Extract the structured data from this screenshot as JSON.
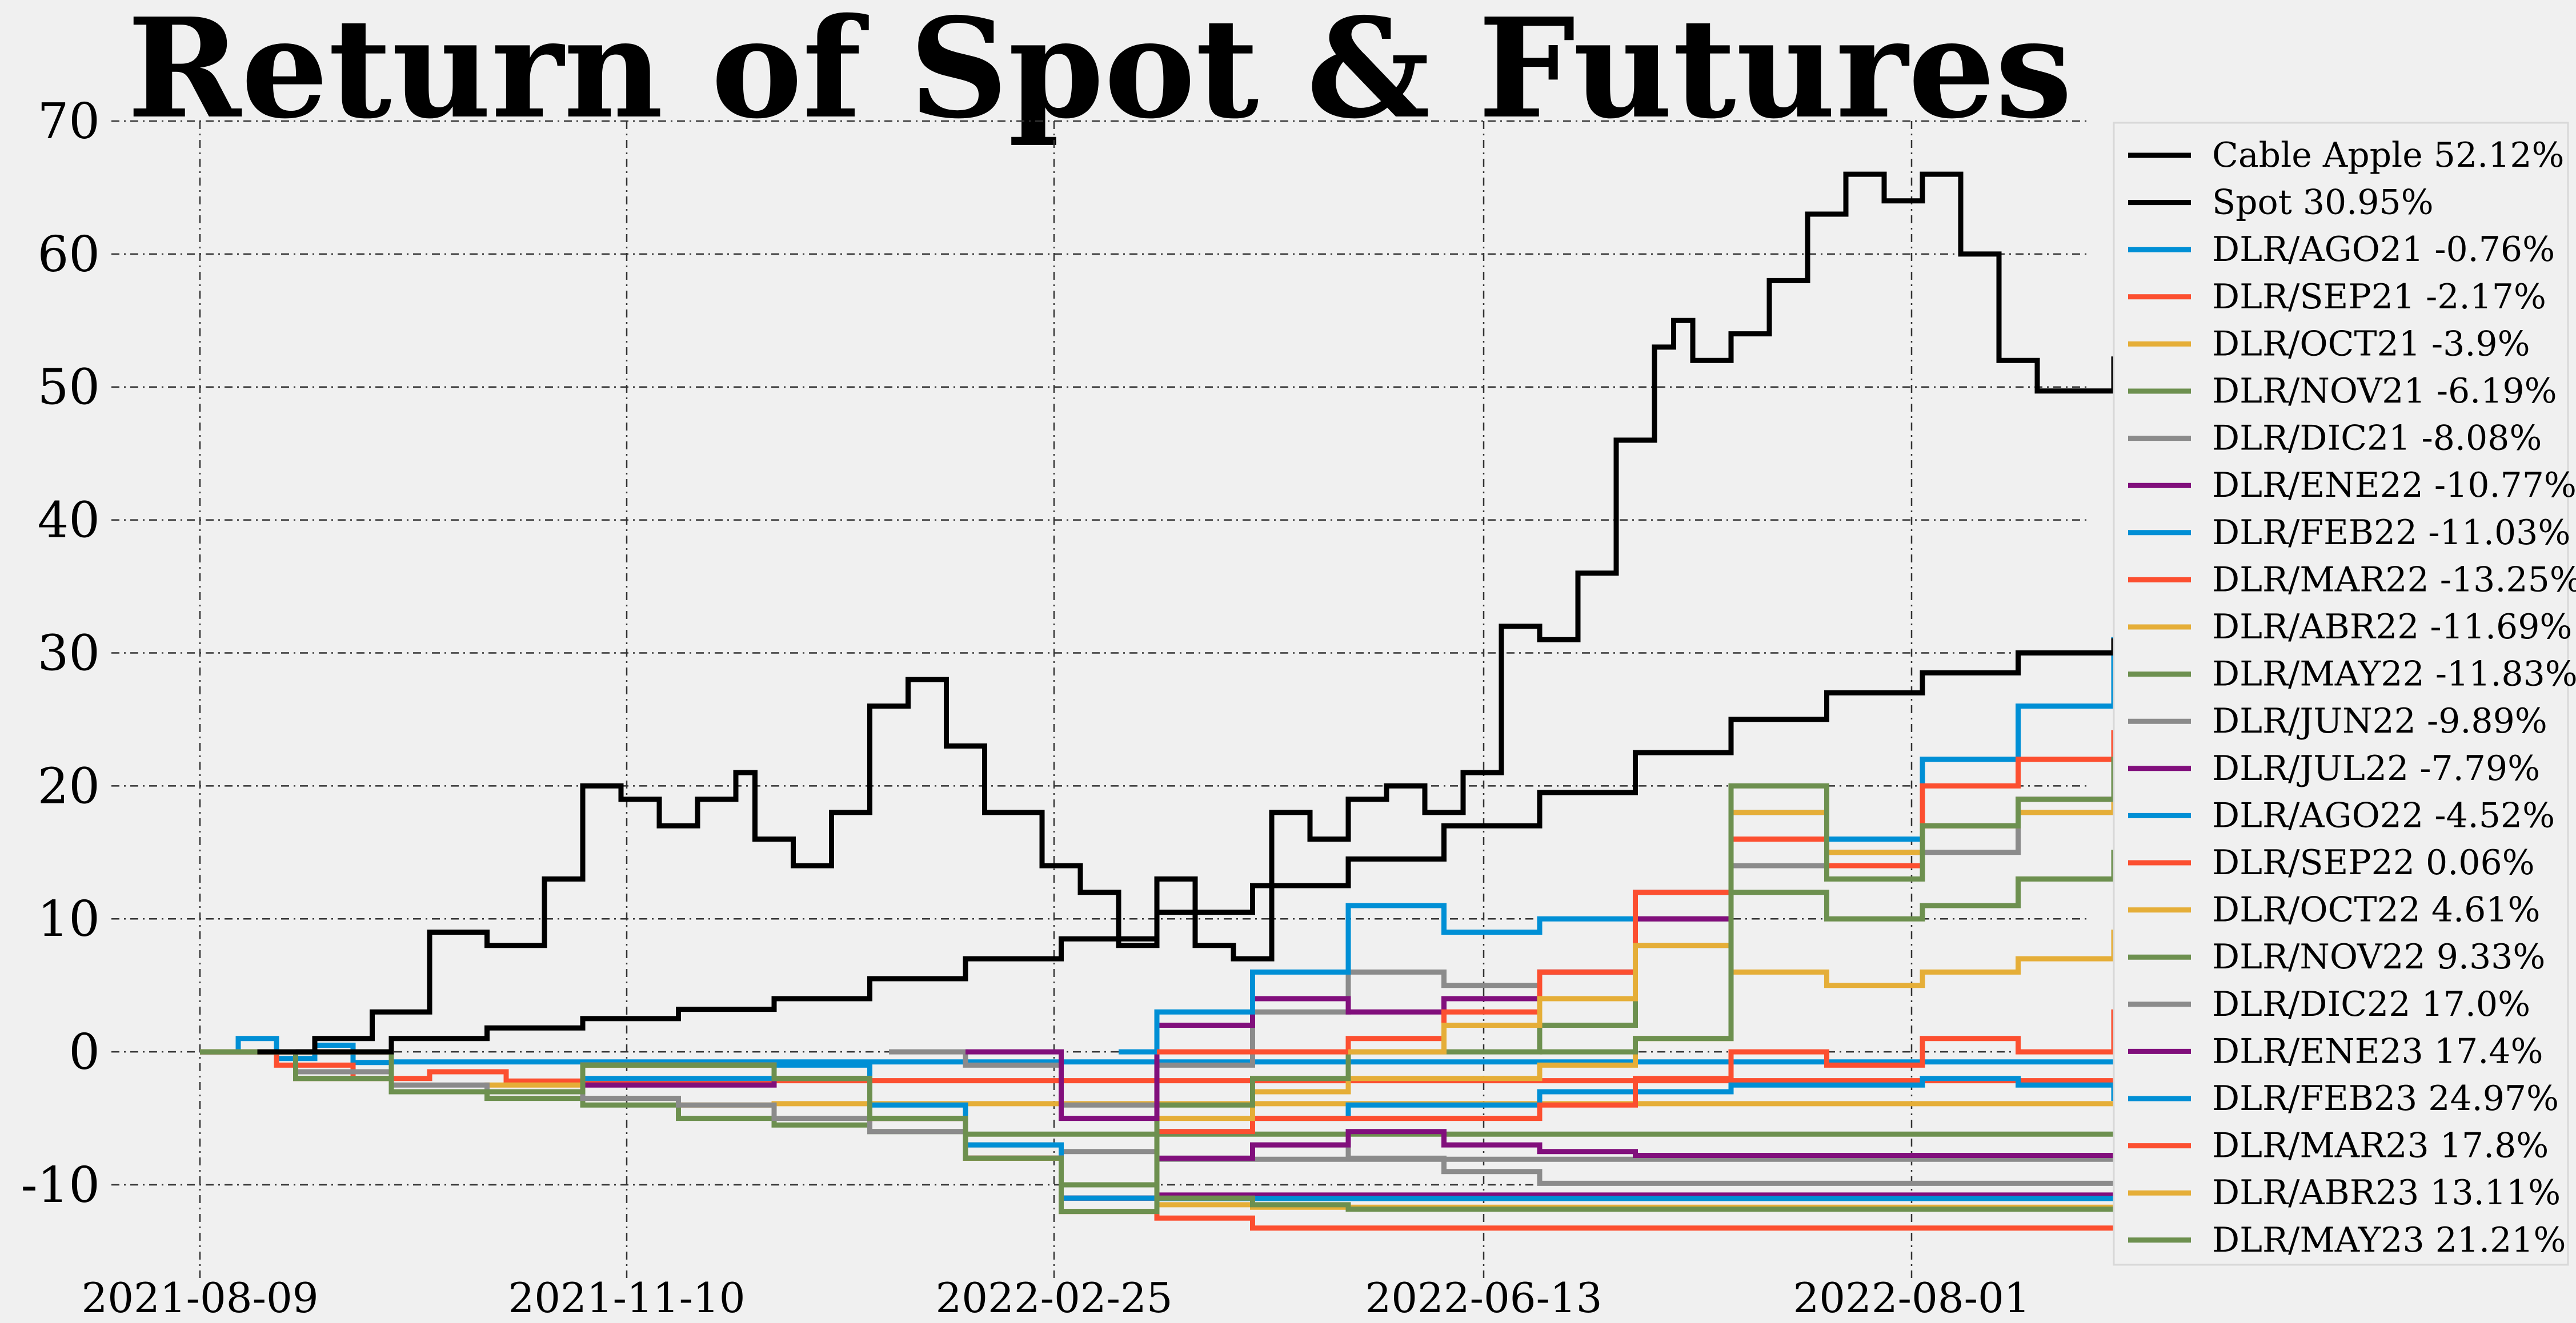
{
  "chart_data": {
    "type": "line",
    "title": "Return of Spot & Futures",
    "xlabel": "",
    "ylabel": "",
    "ylim": [
      -17,
      70
    ],
    "yticks": [
      -10,
      0,
      10,
      20,
      30,
      40,
      50,
      60,
      70
    ],
    "xticks": [
      "2021-08-09",
      "2021-11-10",
      "2022-02-25",
      "2022-06-13",
      "2022-08-01"
    ],
    "xlim": [
      0,
      1.055
    ],
    "grid": true,
    "grid_style": "dash-dot",
    "legend_position": "right",
    "series": [
      {
        "name": "Cable Apple 52.12%",
        "color": "#000000",
        "x": [
          0.03,
          0.06,
          0.09,
          0.12,
          0.15,
          0.18,
          0.2,
          0.22,
          0.24,
          0.26,
          0.28,
          0.29,
          0.31,
          0.33,
          0.35,
          0.37,
          0.39,
          0.41,
          0.44,
          0.46,
          0.48,
          0.5,
          0.52,
          0.54,
          0.56,
          0.58,
          0.6,
          0.62,
          0.64,
          0.66,
          0.68,
          0.7,
          0.72,
          0.74,
          0.76,
          0.77,
          0.78,
          0.8,
          0.82,
          0.84,
          0.86,
          0.88,
          0.9,
          0.92,
          0.94,
          0.96,
          0.98,
          1.0,
          1.02,
          1.05
        ],
        "y": [
          0,
          1,
          3,
          9,
          8,
          13,
          20,
          19,
          17,
          19,
          21,
          16,
          14,
          18,
          26,
          28,
          23,
          18,
          14,
          12,
          8,
          13,
          8,
          7,
          18,
          16,
          19,
          20,
          18,
          21,
          32,
          31,
          36,
          46,
          53,
          55,
          52,
          54,
          58,
          63,
          66,
          64,
          66,
          60,
          52,
          49.7,
          49.7,
          52.1,
          52.1,
          52.1
        ]
      },
      {
        "name": "Spot 30.95%",
        "color": "#000000",
        "x": [
          0.05,
          0.1,
          0.15,
          0.2,
          0.25,
          0.3,
          0.35,
          0.4,
          0.45,
          0.5,
          0.55,
          0.6,
          0.65,
          0.7,
          0.75,
          0.8,
          0.85,
          0.9,
          0.95,
          1.0,
          1.05
        ],
        "y": [
          0,
          1,
          1.8,
          2.5,
          3.2,
          4,
          5.5,
          7,
          8.5,
          10.5,
          12.5,
          14.5,
          17,
          19.5,
          22.5,
          25,
          27,
          28.5,
          30,
          30.9,
          30.95
        ]
      },
      {
        "name": "DLR/AGO21 -0.76%",
        "color": "#008fd5",
        "x": [
          0,
          0.02,
          0.04,
          0.06,
          0.08,
          0.1,
          1.05
        ],
        "y": [
          0,
          1,
          -0.5,
          0.5,
          -0.8,
          -0.76,
          -0.76
        ]
      },
      {
        "name": "DLR/SEP21 -2.17%",
        "color": "#fc4f30",
        "x": [
          0,
          0.04,
          0.08,
          0.12,
          0.16,
          0.2,
          1.05
        ],
        "y": [
          0,
          -1,
          -2,
          -1.5,
          -2.2,
          -2.17,
          -2.17
        ]
      },
      {
        "name": "DLR/OCT21 -3.9%",
        "color": "#e5ae38",
        "x": [
          0,
          0.05,
          0.1,
          0.15,
          0.2,
          0.25,
          0.3,
          1.05
        ],
        "y": [
          0,
          -2,
          -3,
          -2.5,
          -3.5,
          -4,
          -3.9,
          -3.9
        ]
      },
      {
        "name": "DLR/NOV21 -6.19%",
        "color": "#6d904f",
        "x": [
          0,
          0.05,
          0.1,
          0.15,
          0.2,
          0.25,
          0.3,
          0.35,
          0.4,
          1.05
        ],
        "y": [
          0,
          -2,
          -3,
          -3.5,
          -4,
          -5,
          -5.5,
          -6,
          -6.19,
          -6.19
        ]
      },
      {
        "name": "DLR/DIC21 -8.08%",
        "color": "#8b8b8b",
        "x": [
          0,
          0.05,
          0.1,
          0.15,
          0.2,
          0.25,
          0.3,
          0.35,
          0.4,
          0.45,
          0.5,
          1.05
        ],
        "y": [
          0,
          -1.5,
          -2.5,
          -3,
          -3.5,
          -4,
          -5,
          -6,
          -7,
          -7.5,
          -8.08,
          -8.08
        ]
      },
      {
        "name": "DLR/ENE22 -10.77%",
        "color": "#810f7c",
        "x": [
          0,
          0.05,
          0.1,
          0.2,
          0.3,
          0.35,
          0.4,
          0.45,
          0.5,
          1.05
        ],
        "y": [
          0,
          -2,
          -3,
          -2.5,
          -2,
          -5,
          -8,
          -10,
          -10.77,
          -10.77
        ]
      },
      {
        "name": "DLR/FEB22 -11.03%",
        "color": "#008fd5",
        "x": [
          0,
          0.05,
          0.1,
          0.2,
          0.3,
          0.35,
          0.4,
          0.45,
          0.5,
          1.05
        ],
        "y": [
          0,
          -2,
          -3,
          -2,
          -1,
          -4,
          -7,
          -10,
          -11.03,
          -11.03
        ]
      },
      {
        "name": "DLR/MAR22 -13.25%",
        "color": "#fc4f30",
        "x": [
          0,
          0.05,
          0.1,
          0.2,
          0.3,
          0.35,
          0.4,
          0.45,
          0.5,
          0.55,
          1.05
        ],
        "y": [
          0,
          -2,
          -3,
          -1,
          -2,
          -5,
          -8,
          -11,
          -12.5,
          -13.25,
          -13.25
        ]
      },
      {
        "name": "DLR/ABR22 -11.69%",
        "color": "#e5ae38",
        "x": [
          0,
          0.05,
          0.1,
          0.2,
          0.3,
          0.35,
          0.4,
          0.45,
          0.5,
          0.55,
          1.05
        ],
        "y": [
          0,
          -2,
          -3,
          -1,
          -2,
          -5,
          -8,
          -10,
          -11.5,
          -11.69,
          -11.69
        ]
      },
      {
        "name": "DLR/MAY22 -11.83%",
        "color": "#6d904f",
        "x": [
          0,
          0.05,
          0.1,
          0.2,
          0.3,
          0.35,
          0.4,
          0.45,
          0.5,
          0.55,
          0.6,
          1.05
        ],
        "y": [
          0,
          -2,
          -3,
          -1,
          -2,
          -5,
          -8,
          -10,
          -11,
          -11.5,
          -11.83,
          -11.83
        ]
      },
      {
        "name": "DLR/JUN22 -9.89%",
        "color": "#8b8b8b",
        "x": [
          0,
          0.1,
          0.2,
          0.3,
          0.35,
          0.4,
          0.45,
          0.5,
          0.55,
          0.6,
          0.65,
          0.7,
          1.05
        ],
        "y": [
          0,
          -3,
          -1,
          -2,
          -5,
          -8,
          -11,
          -8,
          -7,
          -8,
          -9,
          -9.89,
          -9.89
        ]
      },
      {
        "name": "DLR/JUL22 -7.79%",
        "color": "#810f7c",
        "x": [
          0,
          0.1,
          0.2,
          0.3,
          0.35,
          0.4,
          0.45,
          0.5,
          0.55,
          0.6,
          0.65,
          0.7,
          0.75,
          1.05
        ],
        "y": [
          0,
          -3,
          -1,
          -2,
          -5,
          -8,
          -11,
          -8,
          -7,
          -6,
          -7,
          -7.5,
          -7.79,
          -7.79
        ]
      },
      {
        "name": "DLR/AGO22 -4.52%",
        "color": "#008fd5",
        "x": [
          0,
          0.1,
          0.2,
          0.3,
          0.35,
          0.4,
          0.45,
          0.5,
          0.55,
          0.6,
          0.7,
          0.8,
          0.9,
          0.95,
          1.0,
          1.05
        ],
        "y": [
          0,
          -3,
          -1,
          -2,
          -5,
          -8,
          -11,
          -6,
          -5,
          -4,
          -3,
          -2.5,
          -2,
          -2.5,
          -3.5,
          -4.52
        ]
      },
      {
        "name": "DLR/SEP22 0.06%",
        "color": "#fc4f30",
        "x": [
          0,
          0.1,
          0.2,
          0.3,
          0.35,
          0.4,
          0.45,
          0.5,
          0.55,
          0.6,
          0.7,
          0.75,
          0.8,
          0.85,
          0.9,
          0.95,
          1.0,
          1.05
        ],
        "y": [
          0,
          -3,
          -1,
          -2,
          -5,
          -8,
          -12,
          -6,
          -5,
          -5,
          -4,
          -2,
          0,
          -1,
          1,
          0,
          3,
          0.06
        ]
      },
      {
        "name": "DLR/OCT22 4.61%",
        "color": "#e5ae38",
        "x": [
          0,
          0.1,
          0.2,
          0.3,
          0.35,
          0.4,
          0.45,
          0.5,
          0.55,
          0.6,
          0.7,
          0.75,
          0.8,
          0.85,
          0.9,
          0.95,
          1.0,
          1.05
        ],
        "y": [
          0,
          -3,
          -1,
          -2,
          -5,
          -8,
          -12,
          -5,
          -3,
          -2,
          -1,
          1,
          6,
          5,
          6,
          7,
          9,
          4.61
        ]
      },
      {
        "name": "DLR/NOV22 9.33%",
        "color": "#6d904f",
        "x": [
          0,
          0.1,
          0.2,
          0.3,
          0.35,
          0.4,
          0.45,
          0.5,
          0.55,
          0.6,
          0.7,
          0.75,
          0.8,
          0.85,
          0.9,
          0.95,
          1.0,
          1.05
        ],
        "y": [
          0,
          -3,
          -1,
          -2,
          -5,
          -8,
          -12,
          -4,
          -2,
          0,
          2,
          8,
          12,
          10,
          11,
          13,
          15,
          9.33
        ]
      },
      {
        "name": "DLR/DIC22 17.0%",
        "color": "#8b8b8b",
        "x": [
          0.36,
          0.4,
          0.45,
          0.5,
          0.55,
          0.6,
          0.65,
          0.7,
          0.75,
          0.8,
          0.85,
          0.9,
          0.95,
          1.0,
          1.05
        ],
        "y": [
          0,
          -1,
          -4,
          -1,
          3,
          6,
          5,
          6,
          10,
          14,
          16,
          15,
          18,
          21,
          17
        ]
      },
      {
        "name": "DLR/ENE23 17.4%",
        "color": "#810f7c",
        "x": [
          0.4,
          0.45,
          0.5,
          0.55,
          0.6,
          0.65,
          0.7,
          0.75,
          0.8,
          0.85,
          0.9,
          0.95,
          1.0,
          1.05
        ],
        "y": [
          0,
          -5,
          2,
          4,
          3,
          4,
          6,
          10,
          16,
          15,
          17,
          19,
          23,
          17.4
        ]
      },
      {
        "name": "DLR/FEB23 24.97%",
        "color": "#008fd5",
        "x": [
          0.48,
          0.5,
          0.55,
          0.6,
          0.65,
          0.7,
          0.75,
          0.8,
          0.85,
          0.9,
          0.95,
          1.0,
          1.02,
          1.05
        ],
        "y": [
          0,
          3,
          6,
          11,
          9,
          10,
          12,
          18,
          16,
          22,
          26,
          31,
          28,
          24.97
        ]
      },
      {
        "name": "DLR/MAR23 17.8%",
        "color": "#fc4f30",
        "x": [
          0.5,
          0.55,
          0.6,
          0.65,
          0.7,
          0.75,
          0.8,
          0.85,
          0.9,
          0.95,
          1.0,
          1.05
        ],
        "y": [
          0,
          0,
          1,
          3,
          6,
          12,
          16,
          14,
          20,
          22,
          24,
          17.8
        ]
      },
      {
        "name": "DLR/ABR23 13.11%",
        "color": "#e5ae38",
        "x": [
          0.6,
          0.65,
          0.7,
          0.75,
          0.8,
          0.85,
          0.9,
          0.95,
          1.0,
          1.05
        ],
        "y": [
          0,
          2,
          4,
          8,
          18,
          15,
          17,
          18,
          22,
          13.11
        ]
      },
      {
        "name": "DLR/MAY23 21.21%",
        "color": "#6d904f",
        "x": [
          0.7,
          0.75,
          0.8,
          0.85,
          0.9,
          0.95,
          1.0,
          1.05
        ],
        "y": [
          0,
          1,
          20,
          13,
          17,
          19,
          22,
          21.21
        ]
      }
    ]
  }
}
